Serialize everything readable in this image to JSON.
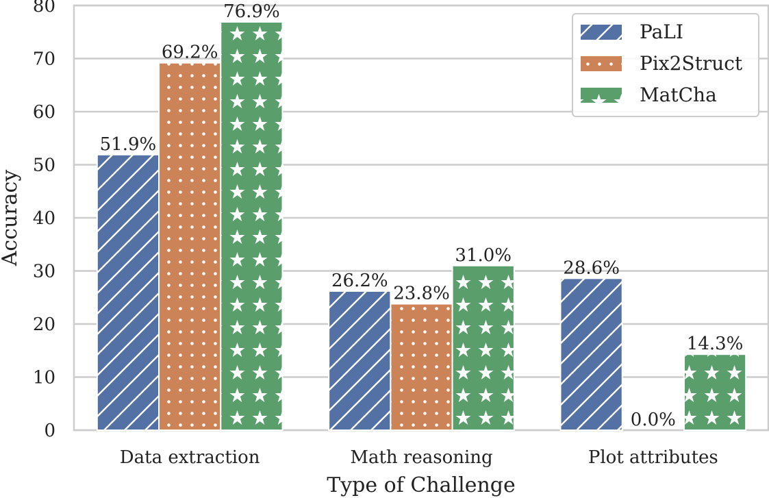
{
  "chart_data": {
    "type": "bar",
    "xlabel": "Type of Challenge",
    "ylabel": "Accuracy",
    "categories": [
      "Data extraction",
      "Math reasoning",
      "Plot attributes"
    ],
    "ylim": [
      0,
      80
    ],
    "yticks": [
      0,
      10,
      20,
      30,
      40,
      50,
      60,
      70,
      80
    ],
    "grid": true,
    "legend_position": "top-right",
    "series": [
      {
        "name": "PaLI",
        "color": "#5471a6",
        "pattern": "diagonal-hatch",
        "values": [
          51.9,
          26.2,
          28.6
        ],
        "labels": [
          "51.9%",
          "26.2%",
          "28.6%"
        ]
      },
      {
        "name": "Pix2Struct",
        "color": "#cc8357",
        "pattern": "dots",
        "values": [
          69.2,
          23.8,
          0.0
        ],
        "labels": [
          "69.2%",
          "23.8%",
          "0.0%"
        ]
      },
      {
        "name": "MatCha",
        "color": "#5a9e6c",
        "pattern": "stars",
        "values": [
          76.9,
          31.0,
          14.3
        ],
        "labels": [
          "76.9%",
          "31.0%",
          "14.3%"
        ]
      }
    ]
  }
}
